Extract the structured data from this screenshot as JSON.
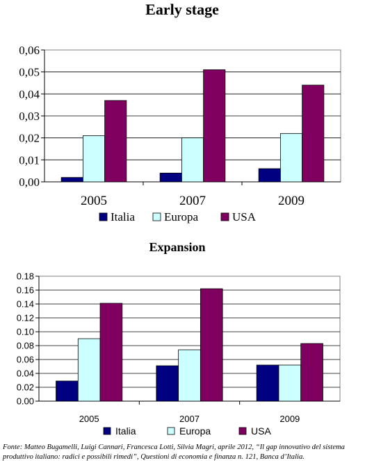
{
  "chart_data": [
    {
      "type": "bar",
      "title": "Early stage",
      "categories": [
        "2005",
        "2007",
        "2009"
      ],
      "series": [
        {
          "name": "Italia",
          "values": [
            0.002,
            0.004,
            0.006
          ]
        },
        {
          "name": "Europa",
          "values": [
            0.021,
            0.02,
            0.022
          ]
        },
        {
          "name": "USA",
          "values": [
            0.037,
            0.051,
            0.044
          ]
        }
      ],
      "yticks": [
        "0,00",
        "0,01",
        "0,02",
        "0,03",
        "0,04",
        "0,05",
        "0,06"
      ],
      "ylim": [
        0,
        0.06
      ],
      "grid": true,
      "legend": "bottom",
      "colors": {
        "Italia": "#000080",
        "Europa": "#ccffff",
        "USA": "#800060"
      }
    },
    {
      "type": "bar",
      "title": "Expansion",
      "categories": [
        "2005",
        "2007",
        "2009"
      ],
      "series": [
        {
          "name": "Italia",
          "values": [
            0.029,
            0.051,
            0.052
          ]
        },
        {
          "name": "Europa",
          "values": [
            0.09,
            0.074,
            0.052
          ]
        },
        {
          "name": "USA",
          "values": [
            0.141,
            0.162,
            0.083
          ]
        }
      ],
      "yticks": [
        "0.00",
        "0.02",
        "0.04",
        "0.06",
        "0.08",
        "0.10",
        "0.12",
        "0.14",
        "0.16",
        "0.18"
      ],
      "ylim": [
        0,
        0.18
      ],
      "grid": true,
      "legend": "bottom",
      "colors": {
        "Italia": "#000080",
        "Europa": "#ccffff",
        "USA": "#800060"
      }
    }
  ],
  "source": "Fonte: Matteo Bugamelli, Luigi Cannari, Francesca Lotti, Silvia Magri, aprile 2012, “Il gap innovativo del sistema produttivo italiano: radici e possibili rimedi”, Questioni di economia e finanza n. 121, Banca d’Italia."
}
